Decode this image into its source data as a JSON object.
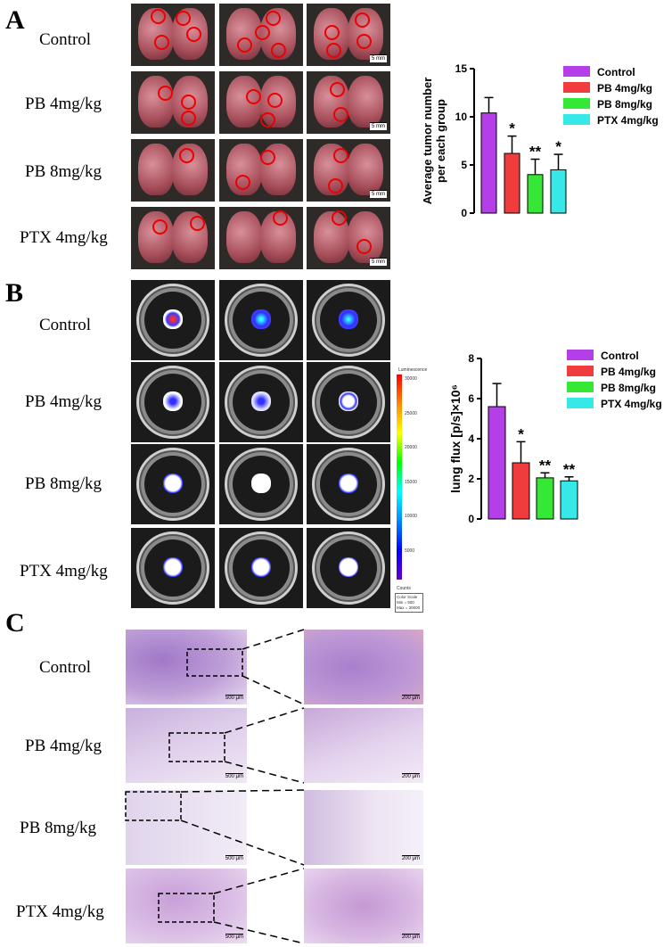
{
  "panels": {
    "A": {
      "letter": "A"
    },
    "B": {
      "letter": "B"
    },
    "C": {
      "letter": "C"
    }
  },
  "row_labels": [
    "Control",
    "PB 4mg/kg",
    "PB 8mg/kg",
    "PTX 4mg/kg"
  ],
  "scale_bars": {
    "lung": "5 mm",
    "hist_low": "500 μm",
    "hist_high": "200 μm"
  },
  "colorbar": {
    "title": "Luminescence",
    "ticks": [
      "30000",
      "25000",
      "20000",
      "15000",
      "10000",
      "5000"
    ],
    "unit_label": "Counts",
    "scale_box": [
      "Color Scale",
      "Min = 500",
      "Max = 30000"
    ]
  },
  "colors": {
    "control": "#b43ee8",
    "pb4": "#f03c3c",
    "pb8": "#36e836",
    "ptx4": "#36e8e8"
  },
  "chart_data": [
    {
      "type": "bar",
      "categories": [
        "Control",
        "PB 4mg/kg",
        "PB 8mg/kg",
        "PTX 4mg/kg"
      ],
      "values": [
        10.4,
        6.2,
        4.0,
        4.5
      ],
      "errors": [
        1.6,
        1.8,
        1.6,
        1.6
      ],
      "significance": [
        "",
        "*",
        "**",
        "*"
      ],
      "ylabel": "Average tumor number per each group",
      "ylim": [
        0,
        15
      ],
      "yticks": [
        0,
        5,
        10,
        15
      ],
      "legend": [
        "Control",
        "PB 4mg/kg",
        "PB 8mg/kg",
        "PTX 4mg/kg"
      ],
      "legend_position": "top-right"
    },
    {
      "type": "bar",
      "categories": [
        "Control",
        "PB 4mg/kg",
        "PB 8mg/kg",
        "PTX 4mg/kg"
      ],
      "values": [
        5.6,
        2.8,
        2.05,
        1.9
      ],
      "errors": [
        1.15,
        1.05,
        0.25,
        0.2
      ],
      "significance": [
        "",
        "*",
        "**",
        "**"
      ],
      "ylabel": "lung flux [p/s]×10⁶",
      "ylim": [
        0,
        8
      ],
      "yticks": [
        0,
        2,
        4,
        6,
        8
      ],
      "legend": [
        "Control",
        "PB 4mg/kg",
        "PB 8mg/kg",
        "PTX 4mg/kg"
      ],
      "legend_position": "top-right"
    }
  ]
}
